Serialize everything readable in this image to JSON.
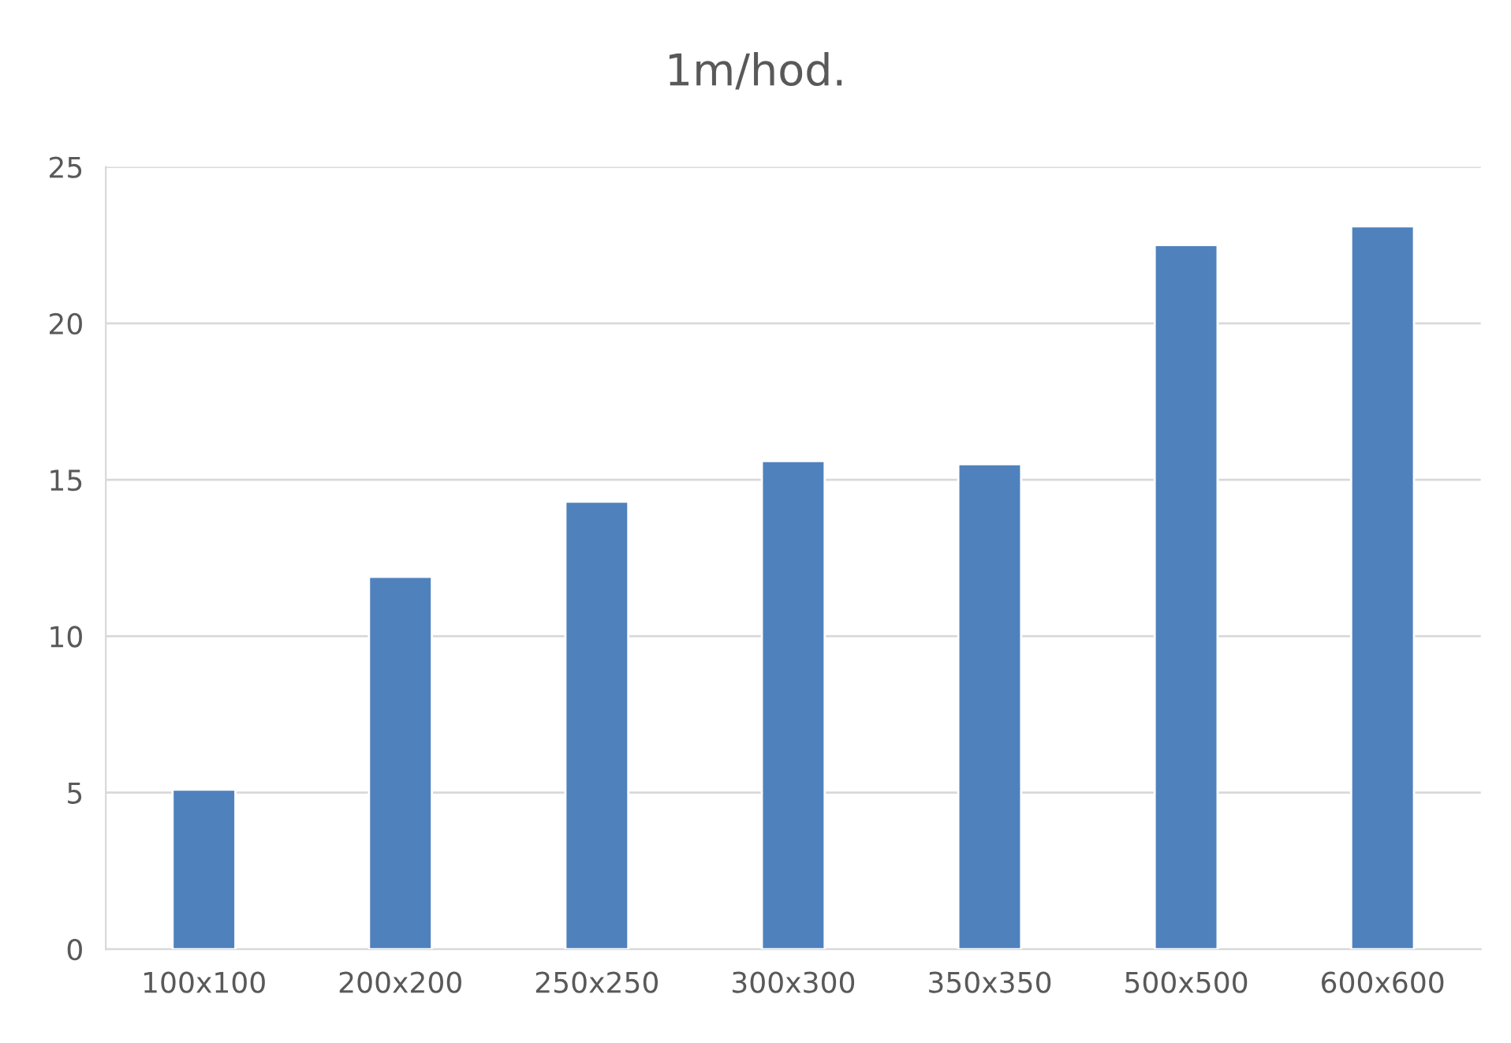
{
  "chart_data": {
    "type": "bar",
    "title": "1m/hod.",
    "categories": [
      "100x100",
      "200x200",
      "250x250",
      "300x300",
      "350x350",
      "500x500",
      "600x600"
    ],
    "values": [
      5.1,
      11.9,
      14.3,
      15.6,
      15.5,
      22.5,
      23.1
    ],
    "color": "#4f81bd",
    "ylim": [
      0,
      25
    ],
    "yticks": [
      0,
      5,
      10,
      15,
      20,
      25
    ],
    "grid": "y",
    "legend": false
  }
}
